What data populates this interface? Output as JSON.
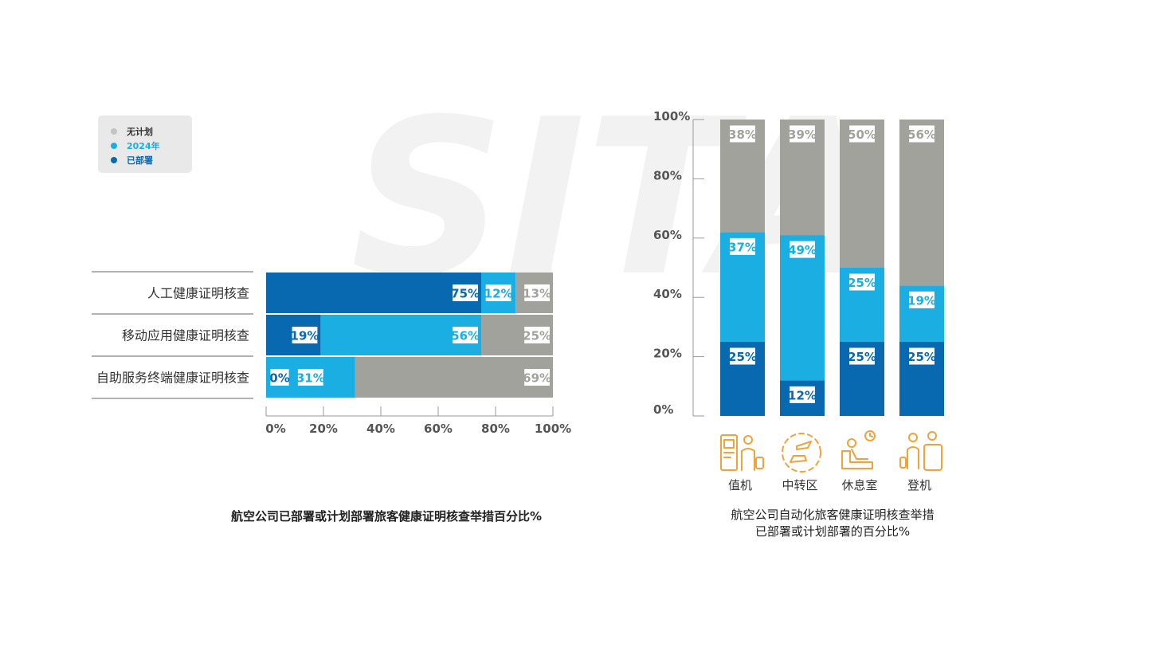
{
  "colors": {
    "deployed": "#0868b0",
    "plan_2024": "#1aaee2",
    "no_plan": "#a2a29d",
    "icon": "#f3a23a",
    "watermark": "#f2f2f2"
  },
  "watermark": "SITA",
  "legend": [
    {
      "label": "无计划",
      "color": "#c4c4c4",
      "text_color": "#333333"
    },
    {
      "label": "2024年",
      "color": "#1aaee2",
      "text_color": "#1aaee2"
    },
    {
      "label": "已部署",
      "color": "#0868b0",
      "text_color": "#0868b0"
    }
  ],
  "chart_data": [
    {
      "type": "bar",
      "orientation": "horizontal",
      "stacked": true,
      "title": "航空公司已部署或计划部署旅客健康证明核查举措百分比%",
      "categories": [
        "人工健康证明核查",
        "移动应用健康证明核查",
        "自助服务终端健康证明核查"
      ],
      "series": [
        {
          "name": "已部署",
          "values": [
            75,
            19,
            0
          ],
          "labels": [
            "75%",
            "19%",
            "0%"
          ]
        },
        {
          "name": "2024年",
          "values": [
            12,
            56,
            31
          ],
          "labels": [
            "12%",
            "56%",
            "31%"
          ]
        },
        {
          "name": "无计划",
          "values": [
            13,
            25,
            69
          ],
          "labels": [
            "13%",
            "25%",
            "69%"
          ]
        }
      ],
      "xlim": [
        0,
        100
      ],
      "xticks": [
        "0%",
        "20%",
        "40%",
        "60%",
        "80%",
        "100%"
      ],
      "legend_position": "top-left"
    },
    {
      "type": "bar",
      "orientation": "vertical",
      "stacked": true,
      "title": [
        "航空公司自动化旅客健康证明核查举措",
        "已部署或计划部署的百分比%"
      ],
      "categories": [
        "值机",
        "中转区",
        "休息室",
        "登机"
      ],
      "category_icons": [
        "kiosk-traveler-icon",
        "transfer-planes-icon",
        "lounge-icon",
        "boarding-icon"
      ],
      "series": [
        {
          "name": "已部署",
          "values": [
            25,
            12,
            25,
            25
          ],
          "labels": [
            "25%",
            "12%",
            "25%",
            "25%"
          ]
        },
        {
          "name": "2024年",
          "values": [
            37,
            49,
            25,
            19
          ],
          "labels": [
            "37%",
            "49%",
            "25%",
            "19%"
          ]
        },
        {
          "name": "无计划",
          "values": [
            38,
            39,
            50,
            56
          ],
          "labels": [
            "38%",
            "39%",
            "50%",
            "56%"
          ]
        }
      ],
      "ylim": [
        0,
        100
      ],
      "yticks": [
        "0%",
        "20%",
        "40%",
        "60%",
        "80%",
        "100%"
      ]
    }
  ]
}
